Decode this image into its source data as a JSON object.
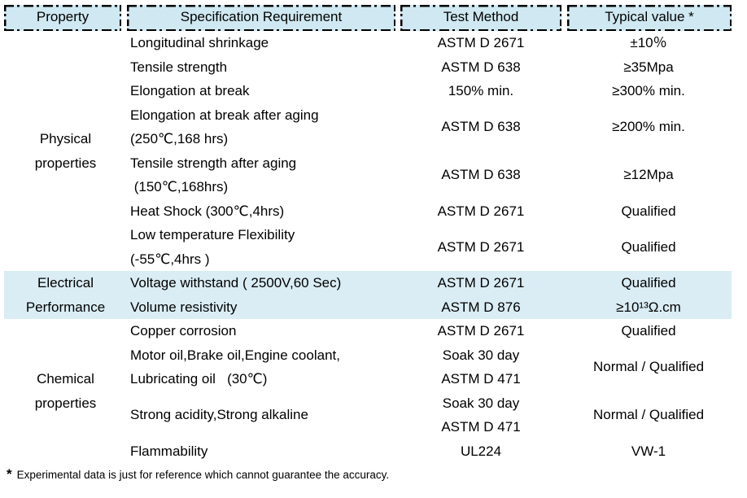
{
  "colors": {
    "header_bg": "#cfe8f1",
    "highlight_row_bg": "#daedf4",
    "border": "#000000",
    "text": "#000000"
  },
  "table": {
    "headers": [
      "Property",
      "Specification Requirement",
      "Test Method",
      "Typical value *"
    ],
    "sections": [
      {
        "id": "physical",
        "property_lines": [
          "Physical",
          "properties"
        ],
        "highlight": false,
        "rows": [
          {
            "spec": [
              "Longitudinal shrinkage"
            ],
            "method": [
              "ASTM D 2671"
            ],
            "value": "±10％"
          },
          {
            "spec": [
              "Tensile strength"
            ],
            "method": [
              "ASTM D 638"
            ],
            "value": "≥35Mpa"
          },
          {
            "spec": [
              "Elongation at break"
            ],
            "method": [
              "150% min."
            ],
            "value": "≥300% min."
          },
          {
            "spec": [
              "Elongation at break after aging",
              "(250℃,168 hrs)"
            ],
            "method": [
              "ASTM D 638"
            ],
            "value": "≥200% min."
          },
          {
            "spec": [
              "Tensile strength after aging",
              " (150℃,168hrs)"
            ],
            "method": [
              "ASTM D 638"
            ],
            "value": "≥12Mpa"
          },
          {
            "spec": [
              "Heat Shock (300℃,4hrs)"
            ],
            "method": [
              "ASTM D 2671"
            ],
            "value": "Qualified"
          },
          {
            "spec": [
              "Low temperature Flexibility",
              "(-55℃,4hrs )"
            ],
            "method": [
              "ASTM D 2671"
            ],
            "value": "Qualified"
          }
        ]
      },
      {
        "id": "electrical",
        "property_lines": [
          "Electrical",
          "Performance"
        ],
        "highlight": true,
        "rows": [
          {
            "spec": [
              "Voltage withstand ( 2500V,60 Sec)"
            ],
            "method": [
              "ASTM D 2671"
            ],
            "value": "Qualified"
          },
          {
            "spec": [
              "Volume resistivity"
            ],
            "method": [
              "ASTM D 876"
            ],
            "value": "≥10¹³Ω.cm"
          }
        ]
      },
      {
        "id": "chemical",
        "property_lines": [
          "Chemical",
          "properties"
        ],
        "highlight": false,
        "rows": [
          {
            "spec": [
              "Copper corrosion"
            ],
            "method": [
              "ASTM D 2671"
            ],
            "value": "Qualified"
          },
          {
            "spec": [
              "Motor oil,Brake oil,Engine coolant,",
              "Lubricating oil   (30℃)"
            ],
            "method": [
              "Soak 30 day",
              "ASTM D 471"
            ],
            "value": "Normal / Qualified"
          },
          {
            "spec": [
              "Strong acidity,Strong alkaline"
            ],
            "method": [
              "Soak 30 day",
              "ASTM D 471"
            ],
            "value": "Normal / Qualified"
          },
          {
            "spec": [
              "Flammability"
            ],
            "method": [
              "UL224"
            ],
            "value": "VW-1"
          }
        ]
      }
    ]
  },
  "footnote": {
    "marker": "*",
    "text": "Experimental data is just for reference which cannot guarantee the accuracy."
  }
}
